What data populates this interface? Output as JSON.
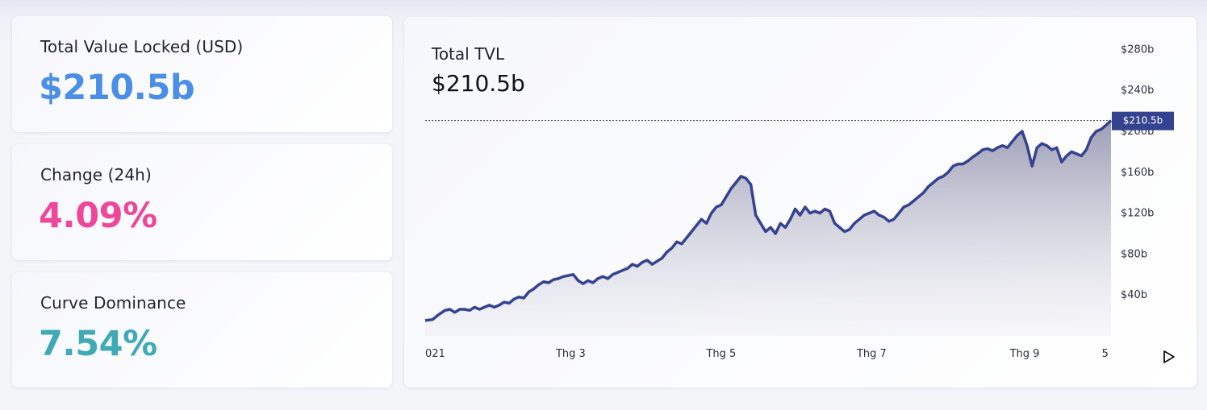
{
  "stats": [
    {
      "label": "Total Value Locked (USD)",
      "value": "$210.5b",
      "color": "#4a8ee8"
    },
    {
      "label": "Change (24h)",
      "value": "4.09%",
      "color": "#f0469a"
    },
    {
      "label": "Curve Dominance",
      "value": "7.54%",
      "color": "#3fa9b6"
    }
  ],
  "chart": {
    "title": "Total TVL",
    "value": "$210.5b",
    "current_label": "$210.5b",
    "accent": "#35428f",
    "play_icon": "play-icon"
  },
  "chart_data": {
    "type": "area",
    "title": "Total TVL",
    "ylim": [
      0,
      300
    ],
    "yticks": [
      {
        "value": 40,
        "label": "$40b"
      },
      {
        "value": 80,
        "label": "$80b"
      },
      {
        "value": 120,
        "label": "$120b"
      },
      {
        "value": 160,
        "label": "$160b"
      },
      {
        "value": 200,
        "label": "$200b"
      },
      {
        "value": 240,
        "label": "$240b"
      },
      {
        "value": 280,
        "label": "$280b"
      }
    ],
    "xticks": [
      {
        "x": 0,
        "label": "021"
      },
      {
        "x": 59,
        "label": "Thg 3"
      },
      {
        "x": 120,
        "label": "Thg 5"
      },
      {
        "x": 181,
        "label": "Thg 7"
      },
      {
        "x": 243,
        "label": "Thg 9"
      },
      {
        "x": 277,
        "label": "5"
      }
    ],
    "current_value": 210.5,
    "series": [
      {
        "values": [
          [
            0,
            15
          ],
          [
            3,
            16
          ],
          [
            5,
            20
          ],
          [
            8,
            25
          ],
          [
            10,
            26
          ],
          [
            12,
            23
          ],
          [
            14,
            26
          ],
          [
            16,
            26
          ],
          [
            18,
            25
          ],
          [
            20,
            28
          ],
          [
            22,
            26
          ],
          [
            24,
            28
          ],
          [
            26,
            30
          ],
          [
            28,
            28
          ],
          [
            30,
            30
          ],
          [
            32,
            33
          ],
          [
            34,
            32
          ],
          [
            36,
            36
          ],
          [
            38,
            38
          ],
          [
            40,
            37
          ],
          [
            42,
            43
          ],
          [
            44,
            46
          ],
          [
            46,
            50
          ],
          [
            48,
            53
          ],
          [
            50,
            52
          ],
          [
            52,
            55
          ],
          [
            54,
            56
          ],
          [
            56,
            58
          ],
          [
            58,
            59
          ],
          [
            60,
            60
          ],
          [
            62,
            54
          ],
          [
            64,
            51
          ],
          [
            66,
            54
          ],
          [
            68,
            52
          ],
          [
            70,
            56
          ],
          [
            72,
            58
          ],
          [
            74,
            56
          ],
          [
            76,
            60
          ],
          [
            78,
            62
          ],
          [
            80,
            64
          ],
          [
            82,
            66
          ],
          [
            84,
            70
          ],
          [
            86,
            68
          ],
          [
            88,
            72
          ],
          [
            90,
            74
          ],
          [
            92,
            70
          ],
          [
            94,
            73
          ],
          [
            96,
            76
          ],
          [
            98,
            82
          ],
          [
            100,
            86
          ],
          [
            102,
            92
          ],
          [
            104,
            90
          ],
          [
            106,
            96
          ],
          [
            108,
            102
          ],
          [
            110,
            108
          ],
          [
            112,
            114
          ],
          [
            114,
            110
          ],
          [
            116,
            120
          ],
          [
            118,
            126
          ],
          [
            120,
            128
          ],
          [
            122,
            136
          ],
          [
            124,
            144
          ],
          [
            126,
            150
          ],
          [
            128,
            156
          ],
          [
            130,
            154
          ],
          [
            132,
            148
          ],
          [
            134,
            118
          ],
          [
            136,
            110
          ],
          [
            138,
            102
          ],
          [
            140,
            106
          ],
          [
            142,
            100
          ],
          [
            144,
            110
          ],
          [
            146,
            106
          ],
          [
            148,
            114
          ],
          [
            150,
            124
          ],
          [
            152,
            118
          ],
          [
            154,
            126
          ],
          [
            156,
            120
          ],
          [
            158,
            122
          ],
          [
            160,
            120
          ],
          [
            162,
            124
          ],
          [
            164,
            122
          ],
          [
            166,
            110
          ],
          [
            168,
            106
          ],
          [
            170,
            102
          ],
          [
            172,
            104
          ],
          [
            174,
            110
          ],
          [
            176,
            114
          ],
          [
            178,
            118
          ],
          [
            180,
            120
          ],
          [
            182,
            122
          ],
          [
            184,
            118
          ],
          [
            186,
            116
          ],
          [
            188,
            112
          ],
          [
            190,
            114
          ],
          [
            192,
            120
          ],
          [
            194,
            126
          ],
          [
            196,
            128
          ],
          [
            198,
            132
          ],
          [
            200,
            136
          ],
          [
            202,
            140
          ],
          [
            204,
            146
          ],
          [
            206,
            150
          ],
          [
            208,
            154
          ],
          [
            210,
            156
          ],
          [
            212,
            160
          ],
          [
            214,
            166
          ],
          [
            216,
            168
          ],
          [
            218,
            168
          ],
          [
            220,
            171
          ],
          [
            222,
            175
          ],
          [
            224,
            178
          ],
          [
            226,
            182
          ],
          [
            228,
            183
          ],
          [
            230,
            181
          ],
          [
            232,
            184
          ],
          [
            234,
            186
          ],
          [
            236,
            184
          ],
          [
            238,
            190
          ],
          [
            240,
            196
          ],
          [
            242,
            200
          ],
          [
            244,
            186
          ],
          [
            246,
            166
          ],
          [
            248,
            184
          ],
          [
            250,
            188
          ],
          [
            252,
            186
          ],
          [
            254,
            182
          ],
          [
            256,
            184
          ],
          [
            258,
            170
          ],
          [
            260,
            176
          ],
          [
            262,
            180
          ],
          [
            264,
            178
          ],
          [
            266,
            176
          ],
          [
            268,
            182
          ],
          [
            270,
            194
          ],
          [
            272,
            200
          ],
          [
            274,
            202
          ],
          [
            276,
            206
          ],
          [
            278,
            210.5
          ]
        ]
      }
    ]
  }
}
